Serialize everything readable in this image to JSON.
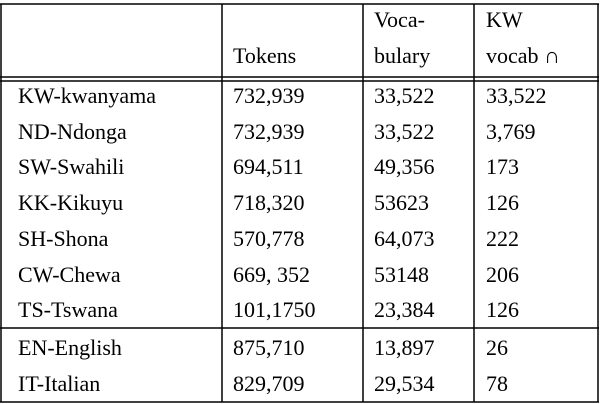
{
  "table": {
    "header": [
      [
        "Tokens"
      ],
      [
        "Voca-",
        "bulary"
      ],
      [
        "KW",
        "vocab ∩"
      ]
    ],
    "groups": [
      [
        [
          "KW-kwanyama",
          "732,939",
          "33,522",
          "33,522"
        ],
        [
          "ND-Ndonga",
          "732,939",
          "33,522",
          "3,769"
        ],
        [
          "SW-Swahili",
          "694,511",
          "49,356",
          "173"
        ],
        [
          "KK-Kikuyu",
          "718,320",
          "53623",
          "126"
        ],
        [
          "SH-Shona",
          "570,778",
          "64,073",
          "222"
        ],
        [
          "CW-Chewa",
          "669, 352",
          "53148",
          "206"
        ],
        [
          "TS-Tswana",
          "101,1750",
          "23,384",
          "126"
        ]
      ],
      [
        [
          "EN-English",
          "875,710",
          "13,897",
          "26"
        ],
        [
          "IT-Italian",
          "829,709",
          "29,534",
          "78"
        ]
      ]
    ]
  }
}
